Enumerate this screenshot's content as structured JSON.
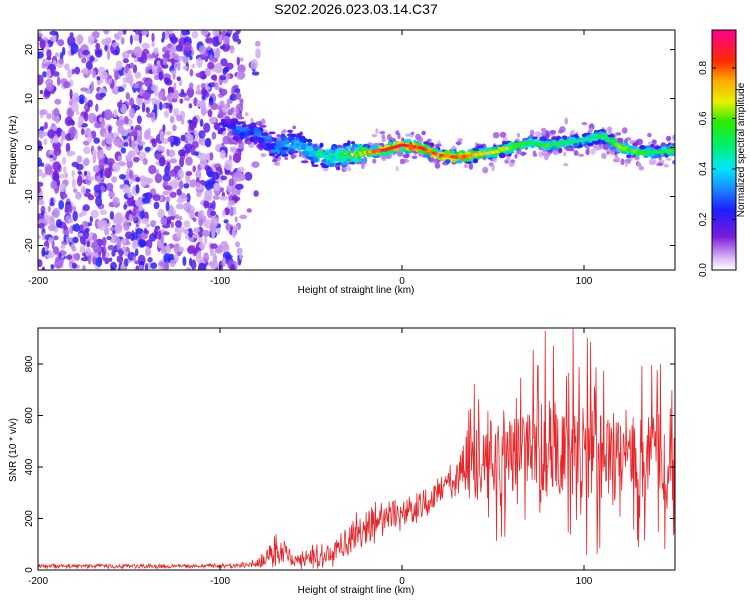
{
  "title": "S202.2026.023.03.14.C37",
  "colors": {
    "snr_line": "#e8262a",
    "axis": "#000000",
    "background": "#ffffff"
  },
  "chart_data": [
    {
      "type": "heatmap",
      "title": "S202.2026.023.03.14.C37",
      "xlabel": "Height of straight line (km)",
      "ylabel": "Frequency (Hz)",
      "xlim": [
        -200,
        150
      ],
      "ylim": [
        -25,
        24
      ],
      "xticks": [
        -200,
        -100,
        0,
        100
      ],
      "yticks": [
        -20,
        -10,
        0,
        10,
        20
      ],
      "colorbar": {
        "label": "Normalized spectral amplitude",
        "range": [
          0,
          0.95
        ],
        "ticks": [
          0.0,
          0.2,
          0.4,
          0.6,
          0.8
        ],
        "colormap": "rainbow (purple-blue-cyan-green-yellow-red-magenta)"
      },
      "noise_region": {
        "x": [
          -200,
          -88
        ],
        "y": [
          -25,
          24
        ],
        "amplitude": [
          0.05,
          0.25
        ]
      },
      "ridge": {
        "description": "Narrow high-amplitude band near 0 Hz",
        "x": [
          -100,
          -90,
          -80,
          -70,
          -60,
          -50,
          -40,
          -30,
          -20,
          -10,
          0,
          10,
          20,
          30,
          40,
          50,
          60,
          70,
          80,
          90,
          100,
          110,
          120,
          130,
          140,
          150
        ],
        "frequency": [
          4.5,
          3.5,
          3,
          0,
          1,
          -1,
          -2,
          -1.5,
          -1,
          -0.5,
          0.5,
          0,
          -1.5,
          -2,
          -1.5,
          -1,
          0,
          1,
          0.5,
          1,
          1.5,
          2.5,
          0,
          -1,
          -1,
          -0.5
        ],
        "amplitude": [
          0.2,
          0.3,
          0.3,
          0.35,
          0.4,
          0.45,
          0.5,
          0.55,
          0.7,
          0.85,
          0.85,
          0.8,
          0.75,
          0.8,
          0.7,
          0.65,
          0.6,
          0.5,
          0.55,
          0.5,
          0.45,
          0.5,
          0.6,
          0.55,
          0.5,
          0.55
        ]
      }
    },
    {
      "type": "line",
      "xlabel": "Height of straight line (km)",
      "ylabel": "SNR (10 * v/v)",
      "xlim": [
        -200,
        150
      ],
      "ylim": [
        0,
        940
      ],
      "xticks": [
        -200,
        -100,
        0,
        100
      ],
      "yticks": [
        0,
        200,
        400,
        600,
        800
      ],
      "envelope": {
        "x": [
          -200,
          -160,
          -120,
          -90,
          -80,
          -75,
          -70,
          -65,
          -60,
          -50,
          -40,
          -30,
          -20,
          -10,
          0,
          10,
          20,
          30,
          40,
          50,
          60,
          70,
          80,
          90,
          100,
          110,
          120,
          130,
          140,
          150
        ],
        "mean": [
          15,
          15,
          15,
          18,
          25,
          40,
          70,
          80,
          35,
          50,
          55,
          120,
          170,
          200,
          215,
          250,
          300,
          370,
          430,
          440,
          445,
          450,
          455,
          455,
          445,
          440,
          430,
          430,
          435,
          440
        ],
        "spread": [
          10,
          10,
          10,
          12,
          20,
          40,
          80,
          70,
          30,
          60,
          60,
          80,
          90,
          90,
          70,
          70,
          70,
          90,
          200,
          220,
          230,
          250,
          260,
          260,
          250,
          240,
          230,
          220,
          230,
          230
        ]
      }
    }
  ]
}
